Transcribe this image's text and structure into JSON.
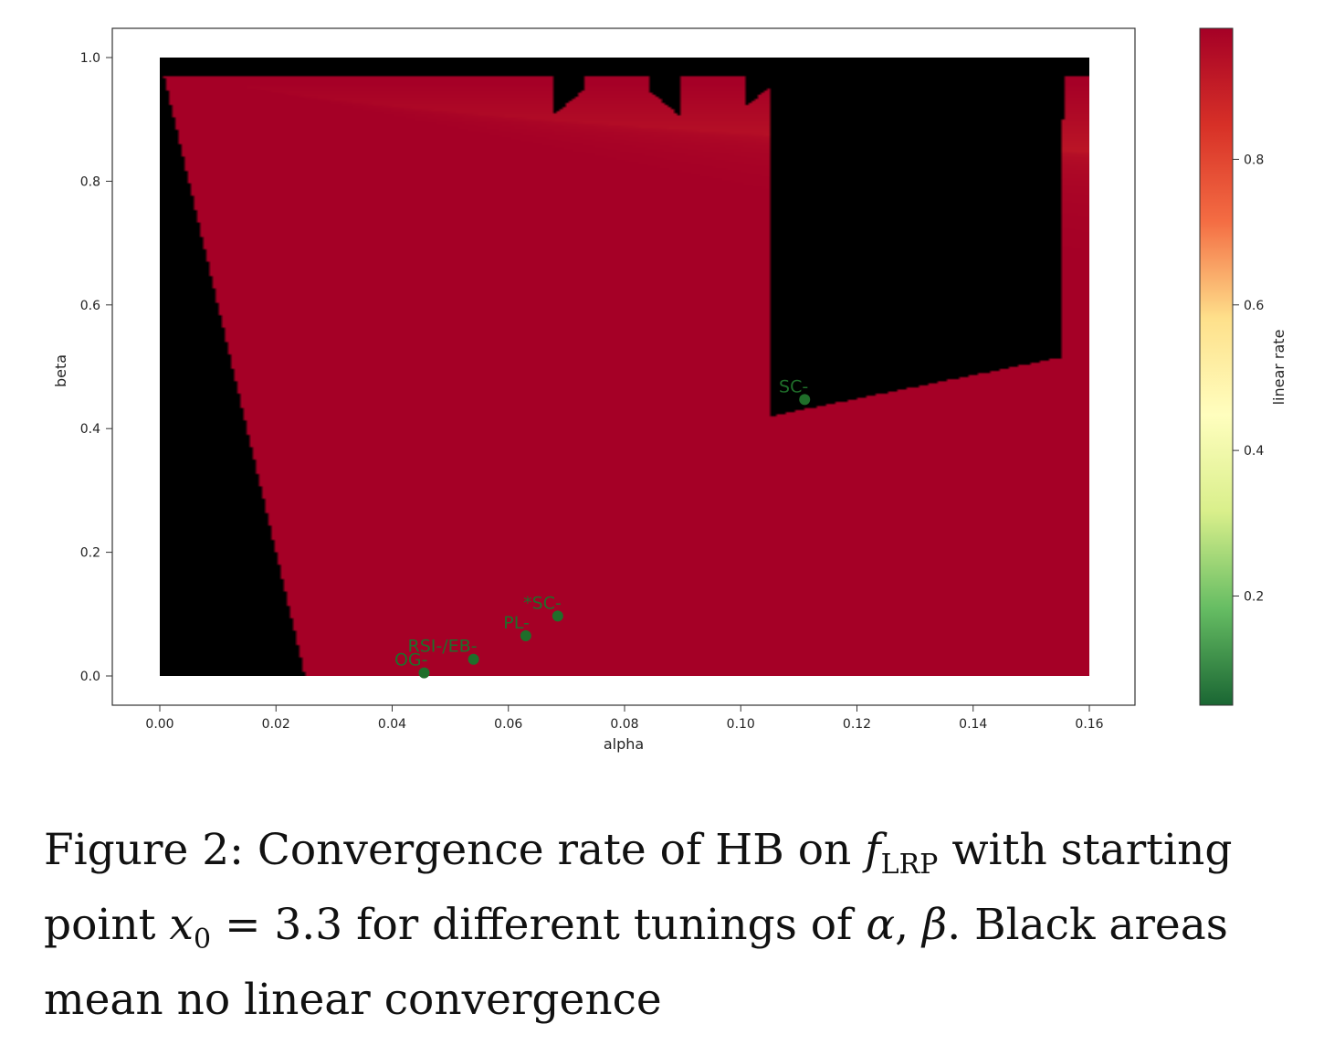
{
  "chart_data": {
    "type": "heatmap",
    "xlabel": "alpha",
    "ylabel": "beta",
    "xlim": [
      0.0,
      0.16
    ],
    "ylim": [
      0.0,
      1.0
    ],
    "xticks": [
      "0.00",
      "0.02",
      "0.04",
      "0.06",
      "0.08",
      "0.10",
      "0.12",
      "0.14",
      "0.16"
    ],
    "yticks": [
      "0.0",
      "0.2",
      "0.4",
      "0.6",
      "0.8",
      "1.0"
    ],
    "colorbar": {
      "label": "linear rate",
      "range": [
        0.05,
        0.98
      ],
      "ticks": [
        "0.2",
        "0.4",
        "0.6",
        "0.8"
      ],
      "colormap": "RdYlGn reversed",
      "stops": [
        "#1a6633",
        "#66bd63",
        "#d9ef8b",
        "#fffebe",
        "#fee08b",
        "#f46d43",
        "#d73027",
        "#a50026"
      ]
    },
    "no_convergence_color": "#000000",
    "points": [
      {
        "label": "OG-",
        "alpha": 0.0455,
        "beta": 0.005,
        "color": "#1f6e2a"
      },
      {
        "label": "RSI-/EB-",
        "alpha": 0.054,
        "beta": 0.027,
        "color": "#1f6e2a"
      },
      {
        "label": "PL-",
        "alpha": 0.063,
        "beta": 0.065,
        "color": "#1f6e2a"
      },
      {
        "label": "*SC-",
        "alpha": 0.0685,
        "beta": 0.097,
        "color": "#1f6e2a"
      },
      {
        "label": "SC-",
        "alpha": 0.111,
        "beta": 0.447,
        "color": "#1f6e2a"
      }
    ]
  },
  "caption": {
    "prefix": "Figure 2:",
    "text_1": " Convergence rate of HB on ",
    "f": "f",
    "f_sub": "LRP",
    "text_2": " with starting point ",
    "x": "x",
    "x_sub": "0",
    "text_3": " = 3.3 for different tunings of ",
    "alpha": "α",
    "comma": ", ",
    "beta": "β",
    "text_4": ". Black areas mean no linear convergence"
  }
}
